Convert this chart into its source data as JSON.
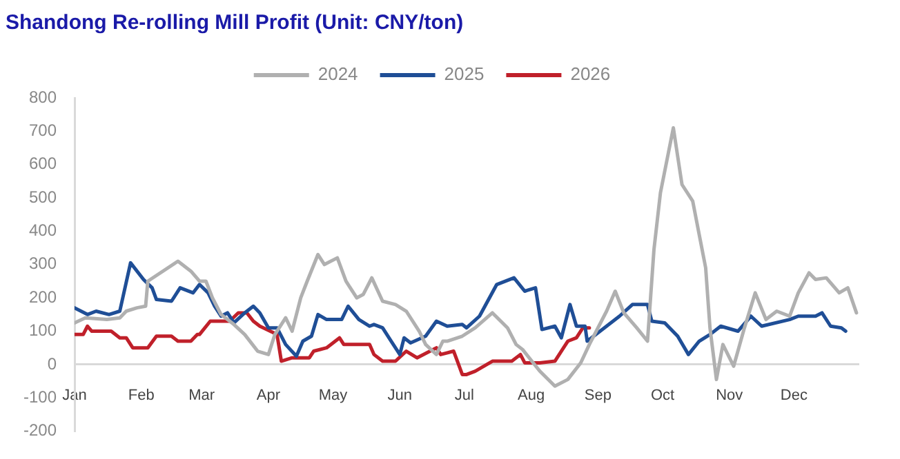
{
  "chart_data": {
    "type": "line",
    "title": "Shandong Re-rolling Mill Profit (Unit: CNY/ton)",
    "xlim": [
      "--01-01",
      "--12-31"
    ],
    "xticks": [
      {
        "value": "--01-01",
        "label": "Jan"
      },
      {
        "value": "--02-01",
        "label": "Feb"
      },
      {
        "value": "--03-01",
        "label": "Mar"
      },
      {
        "value": "--04-01",
        "label": "Apr"
      },
      {
        "value": "--05-01",
        "label": "May"
      },
      {
        "value": "--06-01",
        "label": "Jun"
      },
      {
        "value": "--07-01",
        "label": "Jul"
      },
      {
        "value": "--08-01",
        "label": "Aug"
      },
      {
        "value": "--09-01",
        "label": "Sep"
      },
      {
        "value": "--10-01",
        "label": "Oct"
      },
      {
        "value": "--11-01",
        "label": "Nov"
      },
      {
        "value": "--12-01",
        "label": "Dec"
      }
    ],
    "ylim": [
      -200,
      800
    ],
    "yticks": [
      -200,
      -100,
      0,
      100,
      200,
      300,
      400,
      500,
      600,
      700,
      800
    ],
    "grid": false,
    "legend": "top",
    "marker": "none",
    "line_style": "solid",
    "series": [
      {
        "name": "2024",
        "color": "#b0b0b0",
        "x": [
          "--01-01",
          "--01-06",
          "--01-16",
          "--01-22",
          "--01-25",
          "--01-30",
          "--02-03",
          "--02-04",
          "--02-18",
          "--02-24",
          "--02-28",
          "--03-03",
          "--03-06",
          "--03-10",
          "--03-16",
          "--03-21",
          "--03-27",
          "--04-01",
          "--04-04",
          "--04-09",
          "--04-12",
          "--04-16",
          "--04-19",
          "--04-24",
          "--04-27",
          "--05-03",
          "--05-07",
          "--05-12",
          "--05-15",
          "--05-19",
          "--05-24",
          "--05-30",
          "--06-04",
          "--06-10",
          "--06-13",
          "--06-18",
          "--06-21",
          "--06-23",
          "--06-30",
          "--07-06",
          "--07-14",
          "--07-21",
          "--07-25",
          "--07-28",
          "--08-05",
          "--08-12",
          "--08-18",
          "--08-24",
          "--08-28",
          "--09-05",
          "--09-09",
          "--09-13",
          "--09-19",
          "--09-24",
          "--09-27",
          "--09-30",
          "--10-06",
          "--10-10",
          "--10-15",
          "--10-21",
          "--10-23",
          "--10-26",
          "--10-29",
          "--11-03",
          "--11-08",
          "--11-13",
          "--11-18",
          "--11-23",
          "--11-29",
          "--12-03",
          "--12-08",
          "--12-11",
          "--12-16",
          "--12-22",
          "--12-26",
          "--12-30"
        ],
        "values": [
          125,
          140,
          135,
          140,
          160,
          170,
          175,
          250,
          310,
          280,
          250,
          250,
          200,
          150,
          120,
          90,
          40,
          30,
          90,
          140,
          100,
          200,
          250,
          330,
          300,
          320,
          250,
          200,
          210,
          260,
          190,
          180,
          160,
          100,
          60,
          30,
          70,
          70,
          85,
          110,
          155,
          110,
          60,
          45,
          -20,
          -65,
          -45,
          5,
          60,
          160,
          220,
          155,
          110,
          70,
          345,
          515,
          710,
          540,
          490,
          290,
          110,
          -45,
          60,
          -5,
          110,
          215,
          135,
          160,
          145,
          215,
          275,
          255,
          260,
          215,
          230,
          155
        ]
      },
      {
        "name": "2025",
        "color": "#1f4e96",
        "x": [
          "--01-01",
          "--01-07",
          "--01-11",
          "--01-17",
          "--01-22",
          "--01-27",
          "--02-02",
          "--02-06",
          "--02-08",
          "--02-15",
          "--02-19",
          "--02-25",
          "--02-28",
          "--03-04",
          "--03-07",
          "--03-10",
          "--03-13",
          "--03-16",
          "--03-21",
          "--03-25",
          "--03-28",
          "--04-01",
          "--04-05",
          "--04-09",
          "--04-14",
          "--04-17",
          "--04-21",
          "--04-24",
          "--04-28",
          "--05-05",
          "--05-08",
          "--05-13",
          "--05-18",
          "--05-20",
          "--05-24",
          "--05-28",
          "--06-01",
          "--06-03",
          "--06-06",
          "--06-13",
          "--06-18",
          "--06-23",
          "--06-30",
          "--07-02",
          "--07-08",
          "--07-16",
          "--07-24",
          "--07-29",
          "--08-03",
          "--08-06",
          "--08-12",
          "--08-15",
          "--08-19",
          "--08-22",
          "--08-26",
          "--08-27",
          "--09-05",
          "--09-11",
          "--09-17",
          "--09-24",
          "--09-26",
          "--10-02",
          "--10-08",
          "--10-13",
          "--10-18",
          "--10-23",
          "--10-28",
          "--11-05",
          "--11-11",
          "--11-16",
          "--11-29",
          "--12-03",
          "--12-11",
          "--12-14",
          "--12-18",
          "--12-23",
          "--12-25"
        ],
        "values": [
          170,
          150,
          160,
          150,
          160,
          305,
          255,
          230,
          195,
          190,
          230,
          215,
          240,
          215,
          175,
          145,
          155,
          125,
          155,
          175,
          155,
          110,
          110,
          60,
          25,
          70,
          85,
          150,
          135,
          135,
          175,
          135,
          115,
          120,
          110,
          70,
          30,
          80,
          65,
          85,
          130,
          115,
          120,
          110,
          145,
          240,
          260,
          220,
          230,
          105,
          115,
          80,
          180,
          115,
          115,
          70,
          115,
          145,
          180,
          180,
          130,
          125,
          85,
          30,
          70,
          90,
          115,
          100,
          145,
          115,
          135,
          145,
          145,
          155,
          115,
          110,
          100
        ]
      },
      {
        "name": "2026",
        "color": "#c0202a",
        "x": [
          "--01-01",
          "--01-05",
          "--01-07",
          "--01-09",
          "--01-18",
          "--01-22",
          "--01-25",
          "--01-28",
          "--02-04",
          "--02-08",
          "--02-15",
          "--02-18",
          "--02-24",
          "--02-27",
          "--02-28",
          "--03-05",
          "--03-14",
          "--03-18",
          "--03-22",
          "--03-25",
          "--03-28",
          "--04-05",
          "--04-07",
          "--04-12",
          "--04-20",
          "--04-22",
          "--04-28",
          "--05-04",
          "--05-06",
          "--05-18",
          "--05-20",
          "--05-24",
          "--05-30",
          "--06-04",
          "--06-09",
          "--06-18",
          "--06-20",
          "--06-26",
          "--06-28",
          "--06-30",
          "--07-02",
          "--07-06",
          "--07-10",
          "--07-14",
          "--07-23",
          "--07-27",
          "--07-29",
          "--08-05",
          "--08-12",
          "--08-18",
          "--08-22",
          "--08-25",
          "--08-28"
        ],
        "values": [
          90,
          90,
          115,
          100,
          100,
          80,
          80,
          50,
          50,
          85,
          85,
          70,
          70,
          90,
          90,
          130,
          130,
          155,
          155,
          130,
          115,
          90,
          10,
          20,
          20,
          40,
          50,
          80,
          60,
          60,
          30,
          10,
          10,
          40,
          20,
          50,
          30,
          40,
          5,
          -30,
          -30,
          -20,
          -5,
          10,
          10,
          30,
          5,
          5,
          10,
          70,
          80,
          110,
          110
        ]
      }
    ]
  }
}
